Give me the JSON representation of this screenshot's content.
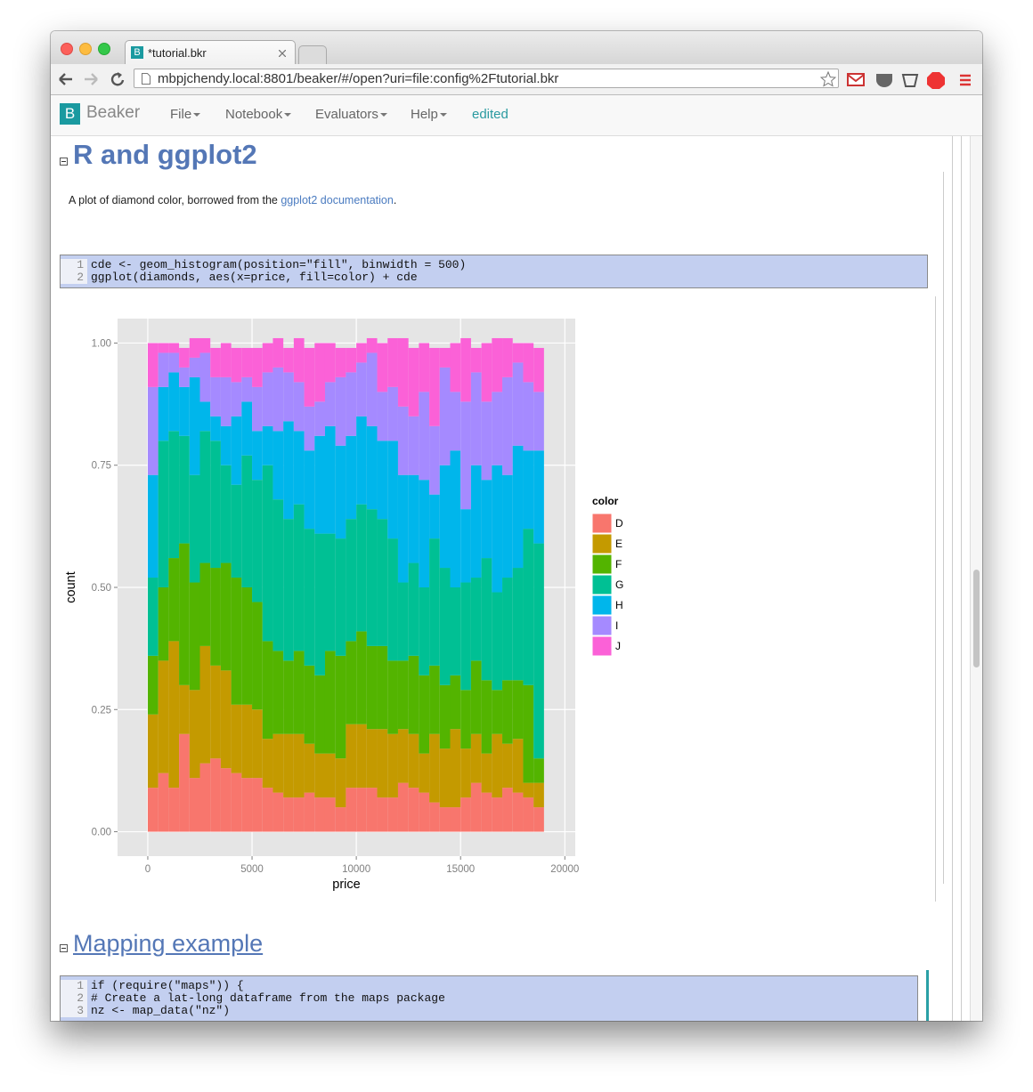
{
  "browser": {
    "tab_title": "*tutorial.bkr",
    "url": "mbpjchendy.local:8801/beaker/#/open?uri=file:config%2Ftutorial.bkr"
  },
  "menu": {
    "logo": "B",
    "brand": "Beaker",
    "items": [
      "File",
      "Notebook",
      "Evaluators",
      "Help"
    ],
    "status": "edited"
  },
  "sections": [
    {
      "heading": "R and ggplot2",
      "text": {
        "before": "A plot of diamond color, borrowed from the ",
        "link": "ggplot2 documentation",
        "after": "."
      },
      "code": [
        {
          "line": "1",
          "text": "cde <- geom_histogram(position=\"fill\", binwidth = 500)"
        },
        {
          "line": "2",
          "text": "ggplot(diamonds, aes(x=price, fill=color) + cde"
        }
      ]
    },
    {
      "heading": "Mapping example",
      "code": [
        {
          "line": "1",
          "text": "if (require(\"maps\")) {"
        },
        {
          "line": "2",
          "text": "# Create a lat-long dataframe from the maps package"
        },
        {
          "line": "3",
          "text": "nz <- map_data(\"nz\")"
        }
      ]
    }
  ],
  "chart_data": {
    "type": "histogram",
    "x_label": "price",
    "y_label": "count",
    "legend_title": "color",
    "legend": "right",
    "grid": true,
    "bins": [
      0,
      500,
      1000,
      1500,
      2000,
      2500,
      3000,
      3500,
      4000,
      4500,
      5000,
      5500,
      6000,
      6500,
      7000,
      7500,
      8000,
      8500,
      9000,
      9500,
      10000,
      10500,
      11000,
      11500,
      12000,
      12500,
      13000,
      13500,
      14000,
      14500,
      15000,
      15500,
      16000,
      16500,
      17000,
      17500,
      18000,
      18500,
      19000
    ],
    "series": [
      {
        "name": "D",
        "color": "#F8766D",
        "values": [
          0.09,
          0.12,
          0.09,
          0.2,
          0.11,
          0.14,
          0.15,
          0.13,
          0.12,
          0.11,
          0.11,
          0.09,
          0.08,
          0.07,
          0.07,
          0.08,
          0.07,
          0.07,
          0.05,
          0.09,
          0.09,
          0.09,
          0.07,
          0.07,
          0.1,
          0.09,
          0.08,
          0.06,
          0.05,
          0.05,
          0.07,
          0.1,
          0.08,
          0.07,
          0.09,
          0.08,
          0.07,
          0.05
        ]
      },
      {
        "name": "E",
        "color": "#C49A00",
        "values": [
          0.15,
          0.23,
          0.3,
          0.1,
          0.18,
          0.24,
          0.19,
          0.2,
          0.14,
          0.15,
          0.14,
          0.1,
          0.12,
          0.13,
          0.13,
          0.1,
          0.09,
          0.09,
          0.1,
          0.13,
          0.13,
          0.12,
          0.14,
          0.13,
          0.11,
          0.11,
          0.08,
          0.14,
          0.12,
          0.16,
          0.1,
          0.1,
          0.08,
          0.13,
          0.09,
          0.11,
          0.03,
          0.05
        ]
      },
      {
        "name": "F",
        "color": "#53B400",
        "values": [
          0.12,
          0.15,
          0.17,
          0.29,
          0.22,
          0.17,
          0.2,
          0.22,
          0.26,
          0.24,
          0.22,
          0.2,
          0.17,
          0.15,
          0.17,
          0.16,
          0.16,
          0.21,
          0.21,
          0.17,
          0.19,
          0.17,
          0.17,
          0.15,
          0.14,
          0.16,
          0.16,
          0.14,
          0.13,
          0.11,
          0.12,
          0.15,
          0.15,
          0.09,
          0.13,
          0.12,
          0.2,
          0.05
        ]
      },
      {
        "name": "G",
        "color": "#00C094",
        "values": [
          0.16,
          0.3,
          0.26,
          0.22,
          0.22,
          0.27,
          0.26,
          0.2,
          0.19,
          0.27,
          0.25,
          0.36,
          0.31,
          0.29,
          0.3,
          0.28,
          0.29,
          0.24,
          0.24,
          0.25,
          0.26,
          0.28,
          0.26,
          0.25,
          0.16,
          0.19,
          0.18,
          0.26,
          0.24,
          0.18,
          0.22,
          0.17,
          0.25,
          0.2,
          0.21,
          0.23,
          0.32,
          0.44
        ]
      },
      {
        "name": "H",
        "color": "#00B6EB",
        "values": [
          0.21,
          0.11,
          0.12,
          0.1,
          0.2,
          0.06,
          0.05,
          0.08,
          0.14,
          0.11,
          0.1,
          0.08,
          0.14,
          0.2,
          0.15,
          0.16,
          0.2,
          0.22,
          0.19,
          0.17,
          0.18,
          0.17,
          0.16,
          0.2,
          0.22,
          0.18,
          0.22,
          0.09,
          0.21,
          0.28,
          0.15,
          0.23,
          0.16,
          0.26,
          0.21,
          0.25,
          0.16,
          0.19
        ]
      },
      {
        "name": "I",
        "color": "#A58AFF",
        "values": [
          0.18,
          0.07,
          0.04,
          0.04,
          0.04,
          0.1,
          0.08,
          0.1,
          0.07,
          0.05,
          0.09,
          0.11,
          0.13,
          0.1,
          0.1,
          0.09,
          0.07,
          0.09,
          0.14,
          0.13,
          0.11,
          0.15,
          0.1,
          0.11,
          0.14,
          0.12,
          0.18,
          0.14,
          0.2,
          0.12,
          0.22,
          0.19,
          0.16,
          0.15,
          0.2,
          0.17,
          0.14,
          0.12
        ]
      },
      {
        "name": "J",
        "color": "#FB61D7",
        "values": [
          0.09,
          0.02,
          0.02,
          0.04,
          0.04,
          0.03,
          0.06,
          0.07,
          0.07,
          0.06,
          0.08,
          0.06,
          0.06,
          0.05,
          0.09,
          0.12,
          0.12,
          0.08,
          0.06,
          0.05,
          0.04,
          0.03,
          0.1,
          0.1,
          0.14,
          0.14,
          0.1,
          0.16,
          0.04,
          0.1,
          0.13,
          0.05,
          0.12,
          0.11,
          0.08,
          0.04,
          0.08,
          0.09
        ]
      }
    ],
    "xlim": [
      -1450,
      20500
    ],
    "ylim": [
      -0.05,
      1.05
    ],
    "xticks": [
      0,
      5000,
      10000,
      15000,
      20000
    ],
    "yticks": [
      {
        "value": 0,
        "label": "0.00"
      },
      {
        "value": 0.25,
        "label": "0.25"
      },
      {
        "value": 0.5,
        "label": "0.50"
      },
      {
        "value": 0.75,
        "label": "0.75"
      },
      {
        "value": 1,
        "label": "1.00"
      }
    ]
  }
}
